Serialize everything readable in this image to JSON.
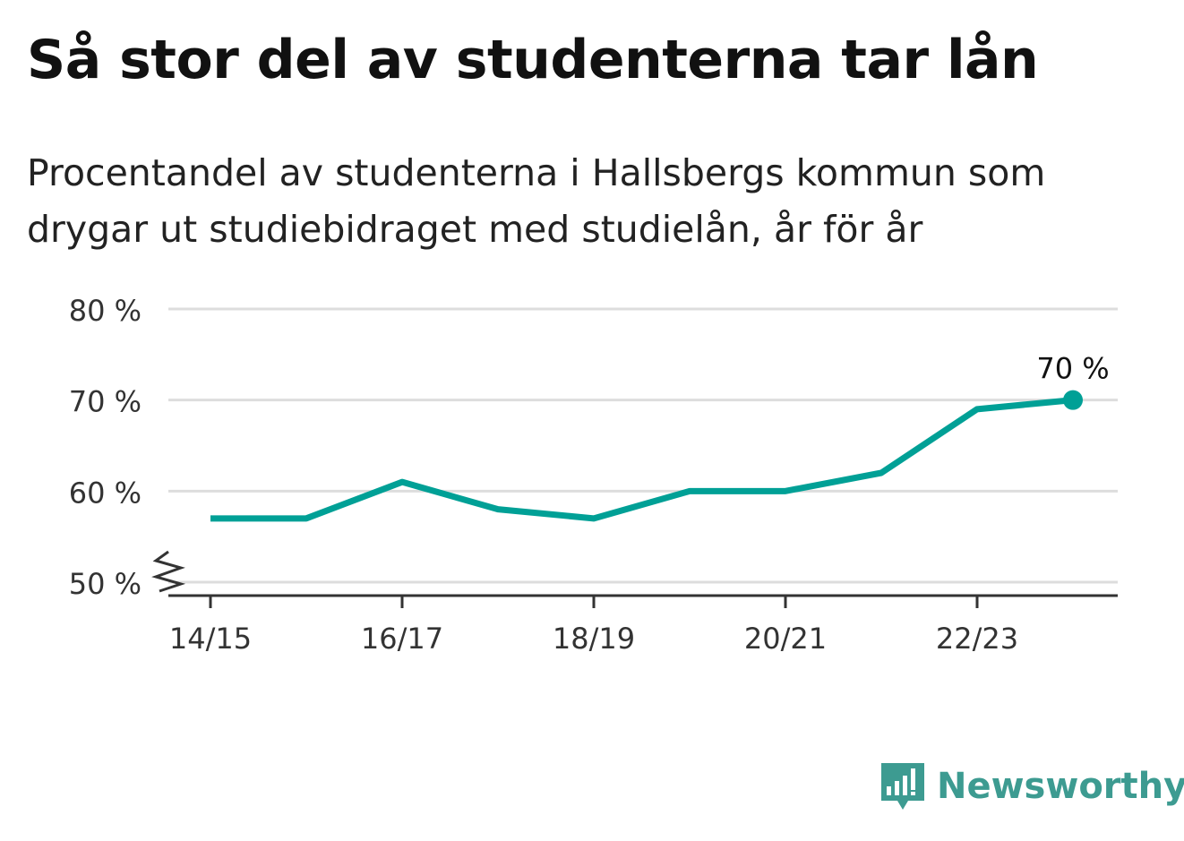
{
  "title": "Så stor del av studenterna tar lån",
  "subtitle": "Procentandel av studenterna i Hallsbergs kommun som drygar ut studiebidraget med studielån, år för år",
  "brand": {
    "name": "Newsworthy",
    "icon": "chart-bubble-logo-icon",
    "color": "#3d9b91"
  },
  "chart_data": {
    "type": "line",
    "x": [
      "14/15",
      "15/16",
      "16/17",
      "17/18",
      "18/19",
      "19/20",
      "20/21",
      "21/22",
      "22/23",
      "23/24"
    ],
    "x_tick_labels": [
      "14/15",
      "16/17",
      "18/19",
      "20/21",
      "22/23"
    ],
    "values": [
      57,
      57,
      61,
      58,
      57,
      60,
      60,
      62,
      69,
      70
    ],
    "ylim": [
      50,
      80
    ],
    "y_ticks": [
      50,
      60,
      70,
      80
    ],
    "y_tick_labels": [
      "50 %",
      "60 %",
      "70 %",
      "80 %"
    ],
    "axis_break": true,
    "grid": true,
    "last_point_label": "70 %",
    "line_color": "#00a096"
  }
}
